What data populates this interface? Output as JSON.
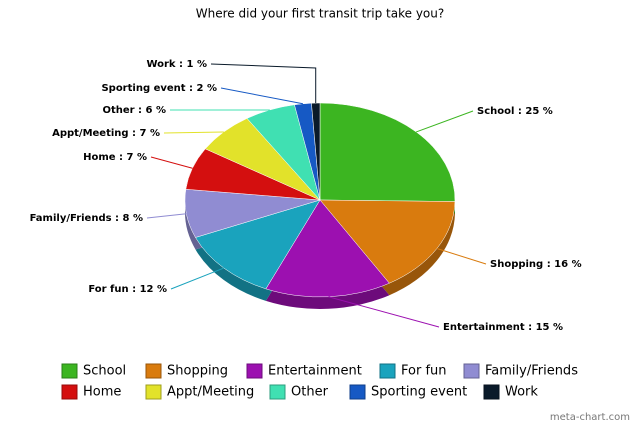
{
  "chart_data": {
    "type": "pie",
    "title": "Where did your first transit trip take you?",
    "categories": [
      "School",
      "Shopping",
      "Entertainment",
      "For fun",
      "Family/Friends",
      "Home",
      "Appt/Meeting",
      "Other",
      "Sporting event",
      "Work"
    ],
    "values": [
      25,
      16,
      15,
      12,
      8,
      7,
      7,
      6,
      2,
      1
    ],
    "value_labels": [
      "School : 25 %",
      "Shopping : 16 %",
      "Entertainment : 15 %",
      "For fun : 12 %",
      "Family/Friends : 8 %",
      "Home : 7 %",
      "Appt/Meeting : 7 %",
      "Other : 6 %",
      "Sporting event : 2 %",
      "Work : 1 %"
    ],
    "colors": [
      "#3cb521",
      "#d97b0e",
      "#9c10b0",
      "#1aa3bd",
      "#908cd2",
      "#d40f0f",
      "#e2e22a",
      "#40e0b2",
      "#1659c4",
      "#0a1a2a"
    ],
    "credit": "meta-chart.com"
  }
}
